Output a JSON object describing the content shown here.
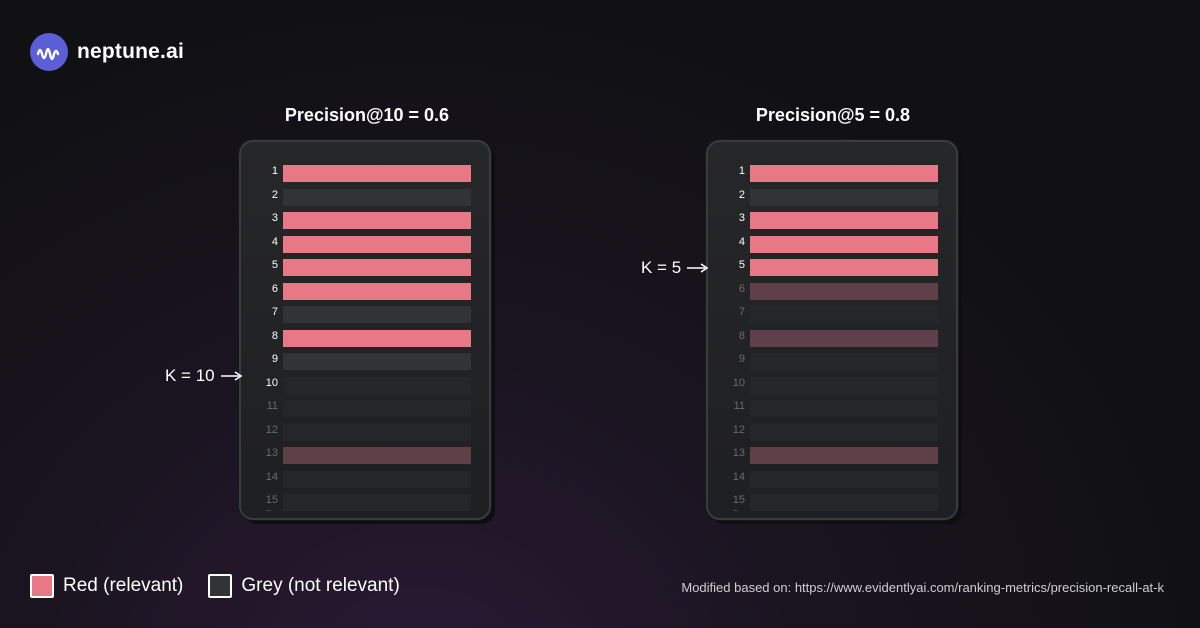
{
  "brand": {
    "name": "neptune.ai",
    "icon": "neptune-wave-icon",
    "accent": "#5b5ed6"
  },
  "panels": [
    {
      "title": "Precision@10 = 0.6",
      "k_label": "K = 10",
      "k": 10,
      "rows": [
        {
          "n": "1",
          "state": "relevant-active"
        },
        {
          "n": "2",
          "state": "irrelevant-active"
        },
        {
          "n": "3",
          "state": "relevant-active"
        },
        {
          "n": "4",
          "state": "relevant-active"
        },
        {
          "n": "5",
          "state": "relevant-active"
        },
        {
          "n": "6",
          "state": "relevant-active"
        },
        {
          "n": "7",
          "state": "irrelevant-active"
        },
        {
          "n": "8",
          "state": "relevant-active"
        },
        {
          "n": "9",
          "state": "irrelevant-active"
        },
        {
          "n": "10",
          "state": "irrelevant-active-dim"
        },
        {
          "n": "11",
          "state": "irrelevant-inactive"
        },
        {
          "n": "12",
          "state": "irrelevant-inactive"
        },
        {
          "n": "13",
          "state": "relevant-inactive"
        },
        {
          "n": "14",
          "state": "irrelevant-inactive"
        },
        {
          "n": "15",
          "state": "irrelevant-inactive"
        }
      ]
    },
    {
      "title": "Precision@5 = 0.8",
      "k_label": "K = 5",
      "k": 5,
      "rows": [
        {
          "n": "1",
          "state": "relevant-active"
        },
        {
          "n": "2",
          "state": "irrelevant-active"
        },
        {
          "n": "3",
          "state": "relevant-active"
        },
        {
          "n": "4",
          "state": "relevant-active"
        },
        {
          "n": "5",
          "state": "relevant-active"
        },
        {
          "n": "6",
          "state": "relevant-inactive"
        },
        {
          "n": "7",
          "state": "irrelevant-inactive"
        },
        {
          "n": "8",
          "state": "relevant-inactive"
        },
        {
          "n": "9",
          "state": "irrelevant-inactive"
        },
        {
          "n": "10",
          "state": "irrelevant-inactive"
        },
        {
          "n": "11",
          "state": "irrelevant-inactive"
        },
        {
          "n": "12",
          "state": "irrelevant-inactive"
        },
        {
          "n": "13",
          "state": "relevant-inactive"
        },
        {
          "n": "14",
          "state": "irrelevant-inactive"
        },
        {
          "n": "15",
          "state": "irrelevant-inactive"
        }
      ]
    }
  ],
  "colors": {
    "relevant-active": "#e87886",
    "irrelevant-active": "#323335",
    "irrelevant-active-dim": "#25262a",
    "relevant-inactive": "#5f3f48",
    "irrelevant-inactive": "#25262a",
    "num-active": "#ffffff",
    "num-inactive": "#6a6b70"
  },
  "continuation": "...",
  "legend": [
    {
      "label": "Red (relevant)",
      "color": "#e87886"
    },
    {
      "label": "Grey (not relevant)",
      "color": "#323335"
    }
  ],
  "source": "Modified based on: https://www.evidentlyai.com/ranking-metrics/precision-recall-at-k"
}
